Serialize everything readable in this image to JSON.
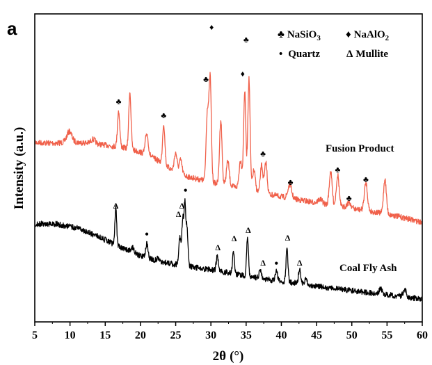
{
  "chart_data": {
    "type": "line",
    "panel_label": "a",
    "xlabel_prefix": "2θ",
    "xlabel_unit": "(°)",
    "ylabel": "Intensity (a.u.)",
    "xlim": [
      5,
      60
    ],
    "xticks": [
      5,
      10,
      15,
      20,
      25,
      30,
      35,
      40,
      45,
      50,
      55,
      60
    ],
    "yticks_shown": false,
    "colors": {
      "fusion": "#f0604a",
      "ash": "#000000",
      "axis": "#000000"
    },
    "legend": {
      "position": "top-right",
      "items": [
        {
          "symbol": "♣",
          "name_main": "NaSiO",
          "name_sub": "3"
        },
        {
          "symbol": "♦",
          "name_main": "NaAlO",
          "name_sub": "2"
        },
        {
          "symbol": "•",
          "name_main": "Quartz",
          "name_sub": ""
        },
        {
          "symbol": "Δ",
          "name_main": "Mullite",
          "name_sub": ""
        }
      ]
    },
    "series": [
      {
        "name": "Fusion Product",
        "color": "#f0604a",
        "baseline": [
          [
            5,
            205
          ],
          [
            8,
            206
          ],
          [
            10,
            204
          ],
          [
            13,
            206
          ],
          [
            16,
            210
          ],
          [
            18,
            213
          ],
          [
            21,
            222
          ],
          [
            23,
            234
          ],
          [
            25,
            248
          ],
          [
            27,
            255
          ],
          [
            30,
            262
          ],
          [
            33,
            268
          ],
          [
            36,
            275
          ],
          [
            40,
            283
          ],
          [
            44,
            290
          ],
          [
            48,
            297
          ],
          [
            52,
            303
          ],
          [
            56,
            310
          ],
          [
            60,
            320
          ]
        ],
        "peaks": [
          {
            "x": 9.9,
            "h": 15,
            "w": 0.35
          },
          {
            "x": 13.3,
            "h": 6,
            "w": 0.3
          },
          {
            "x": 16.9,
            "h": 52,
            "w": 0.16
          },
          {
            "x": 18.5,
            "h": 82,
            "w": 0.16
          },
          {
            "x": 20.9,
            "h": 30,
            "w": 0.2
          },
          {
            "x": 23.3,
            "h": 58,
            "w": 0.16
          },
          {
            "x": 25.0,
            "h": 28,
            "w": 0.2
          },
          {
            "x": 25.7,
            "h": 20,
            "w": 0.2
          },
          {
            "x": 29.5,
            "h": 100,
            "w": 0.18
          },
          {
            "x": 29.9,
            "h": 145,
            "w": 0.16
          },
          {
            "x": 31.4,
            "h": 92,
            "w": 0.17
          },
          {
            "x": 32.4,
            "h": 35,
            "w": 0.2
          },
          {
            "x": 34.2,
            "h": 40,
            "w": 0.2
          },
          {
            "x": 34.8,
            "h": 140,
            "w": 0.16
          },
          {
            "x": 35.4,
            "h": 160,
            "w": 0.16
          },
          {
            "x": 36.1,
            "h": 30,
            "w": 0.2
          },
          {
            "x": 37.2,
            "h": 40,
            "w": 0.18
          },
          {
            "x": 37.8,
            "h": 45,
            "w": 0.18
          },
          {
            "x": 41.2,
            "h": 20,
            "w": 0.25
          },
          {
            "x": 45.5,
            "h": 6,
            "w": 0.3
          },
          {
            "x": 47.0,
            "h": 48,
            "w": 0.2
          },
          {
            "x": 48.0,
            "h": 45,
            "w": 0.2
          },
          {
            "x": 49.6,
            "h": 8,
            "w": 0.3
          },
          {
            "x": 52.0,
            "h": 40,
            "w": 0.22
          },
          {
            "x": 54.7,
            "h": 50,
            "w": 0.2
          }
        ],
        "noise": 4,
        "seed": 7
      },
      {
        "name": "Coal Fly Ash",
        "color": "#000000",
        "baseline": [
          [
            5,
            322
          ],
          [
            8,
            322
          ],
          [
            11,
            328
          ],
          [
            14,
            340
          ],
          [
            17,
            355
          ],
          [
            20,
            368
          ],
          [
            23,
            377
          ],
          [
            26,
            382
          ],
          [
            30,
            388
          ],
          [
            34,
            395
          ],
          [
            38,
            402
          ],
          [
            42,
            407
          ],
          [
            46,
            413
          ],
          [
            50,
            418
          ],
          [
            55,
            424
          ],
          [
            60,
            430
          ]
        ],
        "peaks": [
          {
            "x": 16.5,
            "h": 55,
            "w": 0.12
          },
          {
            "x": 18.9,
            "h": 8,
            "w": 0.2
          },
          {
            "x": 20.9,
            "h": 20,
            "w": 0.15
          },
          {
            "x": 22.6,
            "h": 5,
            "w": 0.2
          },
          {
            "x": 25.6,
            "h": 40,
            "w": 0.15
          },
          {
            "x": 26.0,
            "h": 65,
            "w": 0.13
          },
          {
            "x": 26.3,
            "h": 85,
            "w": 0.12
          },
          {
            "x": 26.6,
            "h": 55,
            "w": 0.14
          },
          {
            "x": 30.9,
            "h": 20,
            "w": 0.15
          },
          {
            "x": 33.2,
            "h": 34,
            "w": 0.13
          },
          {
            "x": 35.2,
            "h": 55,
            "w": 0.13
          },
          {
            "x": 37.0,
            "h": 12,
            "w": 0.15
          },
          {
            "x": 39.3,
            "h": 15,
            "w": 0.15
          },
          {
            "x": 40.8,
            "h": 48,
            "w": 0.13
          },
          {
            "x": 42.6,
            "h": 22,
            "w": 0.15
          },
          {
            "x": 43.5,
            "h": 10,
            "w": 0.15
          },
          {
            "x": 54.1,
            "h": 8,
            "w": 0.2
          },
          {
            "x": 57.5,
            "h": 12,
            "w": 0.2
          }
        ],
        "noise": 4,
        "seed": 13
      }
    ],
    "annotations": [
      {
        "x": 16.9,
        "y": 150,
        "sym": "♣"
      },
      {
        "x": 23.3,
        "y": 170,
        "sym": "♣"
      },
      {
        "x": 29.3,
        "y": 118,
        "sym": "♣"
      },
      {
        "x": 30.1,
        "y": 43,
        "sym": "♦"
      },
      {
        "x": 34.5,
        "y": 110,
        "sym": "♦"
      },
      {
        "x": 35.0,
        "y": 61,
        "sym": "♣"
      },
      {
        "x": 37.4,
        "y": 225,
        "sym": "♣"
      },
      {
        "x": 41.3,
        "y": 266,
        "sym": "♣"
      },
      {
        "x": 48.0,
        "y": 248,
        "sym": "♣"
      },
      {
        "x": 49.6,
        "y": 289,
        "sym": "♣"
      },
      {
        "x": 52.0,
        "y": 262,
        "sym": "♣"
      },
      {
        "x": 16.5,
        "y": 300,
        "sym": "Δ"
      },
      {
        "x": 20.9,
        "y": 342,
        "sym": "•"
      },
      {
        "x": 25.4,
        "y": 312,
        "sym": "Δ"
      },
      {
        "x": 25.9,
        "y": 300,
        "sym": "Δ"
      },
      {
        "x": 26.4,
        "y": 279,
        "sym": "•"
      },
      {
        "x": 31.0,
        "y": 360,
        "sym": "Δ"
      },
      {
        "x": 33.3,
        "y": 347,
        "sym": "Δ"
      },
      {
        "x": 35.3,
        "y": 335,
        "sym": "Δ"
      },
      {
        "x": 37.4,
        "y": 382,
        "sym": "Δ"
      },
      {
        "x": 39.3,
        "y": 384,
        "sym": "•"
      },
      {
        "x": 40.9,
        "y": 346,
        "sym": "Δ"
      },
      {
        "x": 42.6,
        "y": 382,
        "sym": "Δ"
      }
    ]
  }
}
